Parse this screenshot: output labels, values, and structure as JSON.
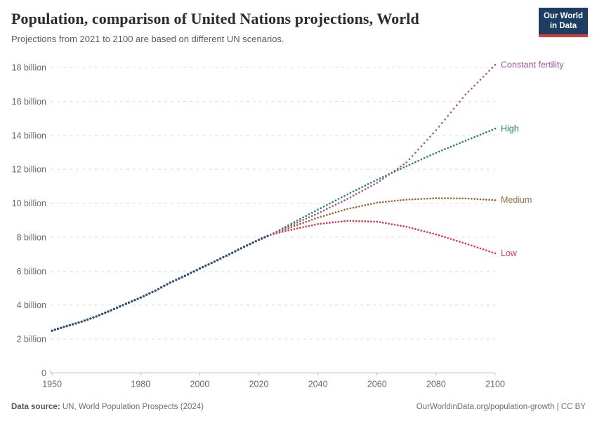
{
  "header": {
    "title": "Population, comparison of United Nations projections, World",
    "subtitle": "Projections from 2021 to 2100 are based on different UN scenarios."
  },
  "logo": {
    "line1": "Our World",
    "line2": "in Data",
    "bg_color": "#1d3d63",
    "accent_color": "#dc3d33"
  },
  "footer": {
    "source_label": "Data source:",
    "source_text": " UN, World Population Prospects (2024)",
    "right_text": "OurWorldinData.org/population-growth | CC BY"
  },
  "chart_data": {
    "type": "line",
    "title": "Population, comparison of United Nations projections, World",
    "values_unit": "billion people",
    "x_range": [
      1949.5,
      2100
    ],
    "y_range": [
      0,
      18
    ],
    "grid": true,
    "legend_position": "right-end-labels",
    "x_ticks": [
      1950,
      1980,
      2000,
      2020,
      2040,
      2060,
      2080,
      2100
    ],
    "y_ticks": [
      {
        "value": 0,
        "label": "0"
      },
      {
        "value": 2,
        "label": "2 billion"
      },
      {
        "value": 4,
        "label": "4 billion"
      },
      {
        "value": 6,
        "label": "6 billion"
      },
      {
        "value": 8,
        "label": "8 billion"
      },
      {
        "value": 10,
        "label": "10 billion"
      },
      {
        "value": 12,
        "label": "12 billion"
      },
      {
        "value": 14,
        "label": "14 billion"
      },
      {
        "value": 16,
        "label": "16 billion"
      },
      {
        "value": 18,
        "label": "18 billion"
      }
    ],
    "series": [
      {
        "key": "low",
        "label": "Low",
        "color": "#d73c50",
        "style": "dotted",
        "dot_radius": 1.35,
        "x": [
          2024,
          2030,
          2040,
          2050,
          2060,
          2070,
          2080,
          2090,
          2100
        ],
        "values": [
          8.14,
          8.4,
          8.77,
          8.96,
          8.91,
          8.61,
          8.16,
          7.62,
          7.05
        ]
      },
      {
        "key": "medium",
        "label": "Medium",
        "color": "#996d39",
        "style": "dotted",
        "dot_radius": 1.35,
        "x": [
          2024,
          2030,
          2040,
          2050,
          2060,
          2070,
          2080,
          2090,
          2100
        ],
        "values": [
          8.14,
          8.53,
          9.15,
          9.66,
          10.03,
          10.21,
          10.29,
          10.28,
          10.18
        ]
      },
      {
        "key": "high",
        "label": "High",
        "color": "#2c8465",
        "style": "dotted",
        "dot_radius": 1.35,
        "x": [
          2024,
          2030,
          2040,
          2050,
          2060,
          2070,
          2080,
          2090,
          2100
        ],
        "values": [
          8.14,
          8.7,
          9.62,
          10.52,
          11.38,
          12.18,
          12.97,
          13.68,
          14.39
        ]
      },
      {
        "key": "constant-fertility",
        "label": "Constant fertility",
        "color": "#a2559c",
        "style": "dotted",
        "dot_radius": 1.35,
        "x": [
          2024,
          2030,
          2040,
          2050,
          2060,
          2070,
          2080,
          2090,
          2100
        ],
        "values": [
          8.14,
          8.62,
          9.4,
          10.25,
          11.2,
          12.4,
          14.3,
          16.4,
          18.15
        ]
      },
      {
        "key": "historical",
        "label": null,
        "color": "#304e6d",
        "style": "dense-dots",
        "dot_radius": 1.7,
        "x": [
          1950,
          1955,
          1960,
          1965,
          1970,
          1975,
          1980,
          1985,
          1990,
          1995,
          2000,
          2005,
          2010,
          2015,
          2020,
          2023
        ],
        "values": [
          2.49,
          2.76,
          3.02,
          3.33,
          3.69,
          4.07,
          4.44,
          4.85,
          5.32,
          5.72,
          6.15,
          6.56,
          6.99,
          7.43,
          7.84,
          8.07
        ]
      }
    ]
  }
}
